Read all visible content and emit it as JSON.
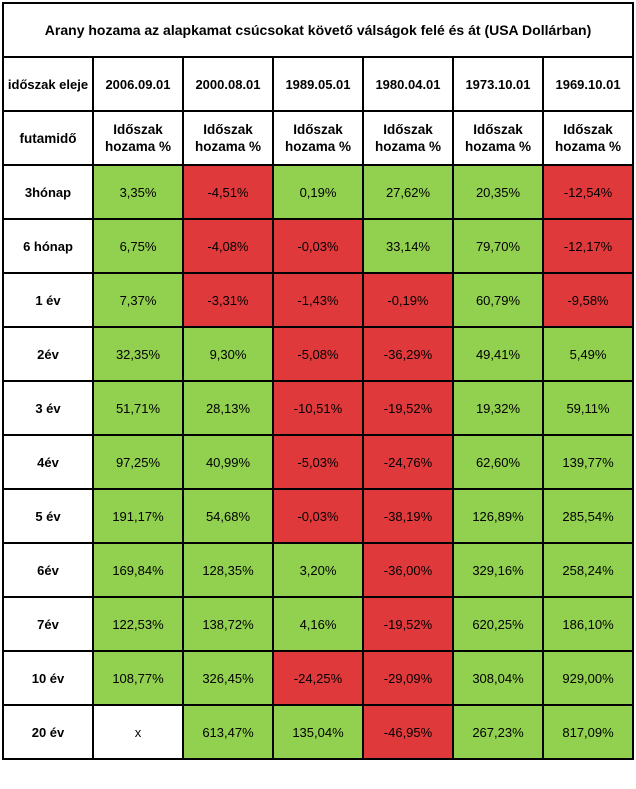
{
  "title": "Arany hozama az alapkamat csúcsokat követő válságok felé és át (USA Dollárban)",
  "header": {
    "row_label": "időszak eleje",
    "dates": [
      "2006.09.01",
      "2000.08.01",
      "1989.05.01",
      "1980.04.01",
      "1973.10.01",
      "1969.10.01"
    ]
  },
  "subheader": {
    "row_label": "futamidő",
    "col_line1": "Időszak",
    "col_line2": "hozama %"
  },
  "colors": {
    "positive": "#92d050",
    "negative": "#e0393b",
    "neutral": "#ffffff"
  },
  "rows": [
    {
      "label": "3hónap",
      "values": [
        "3,35%",
        "-4,51%",
        "0,19%",
        "27,62%",
        "20,35%",
        "-12,54%"
      ],
      "status": [
        "g",
        "r",
        "g",
        "g",
        "g",
        "r"
      ]
    },
    {
      "label": "6 hónap",
      "values": [
        "6,75%",
        "-4,08%",
        "-0,03%",
        "33,14%",
        "79,70%",
        "-12,17%"
      ],
      "status": [
        "g",
        "r",
        "r",
        "g",
        "g",
        "r"
      ]
    },
    {
      "label": "1 év",
      "values": [
        "7,37%",
        "-3,31%",
        "-1,43%",
        "-0,19%",
        "60,79%",
        "-9,58%"
      ],
      "status": [
        "g",
        "r",
        "r",
        "r",
        "g",
        "r"
      ]
    },
    {
      "label": "2év",
      "values": [
        "32,35%",
        "9,30%",
        "-5,08%",
        "-36,29%",
        "49,41%",
        "5,49%"
      ],
      "status": [
        "g",
        "g",
        "r",
        "r",
        "g",
        "g"
      ]
    },
    {
      "label": "3 év",
      "values": [
        "51,71%",
        "28,13%",
        "-10,51%",
        "-19,52%",
        "19,32%",
        "59,11%"
      ],
      "status": [
        "g",
        "g",
        "r",
        "r",
        "g",
        "g"
      ]
    },
    {
      "label": "4év",
      "values": [
        "97,25%",
        "40,99%",
        "-5,03%",
        "-24,76%",
        "62,60%",
        "139,77%"
      ],
      "status": [
        "g",
        "g",
        "r",
        "r",
        "g",
        "g"
      ]
    },
    {
      "label": "5 év",
      "values": [
        "191,17%",
        "54,68%",
        "-0,03%",
        "-38,19%",
        "126,89%",
        "285,54%"
      ],
      "status": [
        "g",
        "g",
        "r",
        "r",
        "g",
        "g"
      ]
    },
    {
      "label": "6év",
      "values": [
        "169,84%",
        "128,35%",
        "3,20%",
        "-36,00%",
        "329,16%",
        "258,24%"
      ],
      "status": [
        "g",
        "g",
        "g",
        "r",
        "g",
        "g"
      ]
    },
    {
      "label": "7év",
      "values": [
        "122,53%",
        "138,72%",
        "4,16%",
        "-19,52%",
        "620,25%",
        "186,10%"
      ],
      "status": [
        "g",
        "g",
        "g",
        "r",
        "g",
        "g"
      ]
    },
    {
      "label": "10 év",
      "values": [
        "108,77%",
        "326,45%",
        "-24,25%",
        "-29,09%",
        "308,04%",
        "929,00%"
      ],
      "status": [
        "g",
        "g",
        "r",
        "r",
        "g",
        "g"
      ]
    },
    {
      "label": "20 év",
      "values": [
        "x",
        "613,47%",
        "135,04%",
        "-46,95%",
        "267,23%",
        "817,09%"
      ],
      "status": [
        "w",
        "g",
        "g",
        "r",
        "g",
        "g"
      ]
    }
  ]
}
